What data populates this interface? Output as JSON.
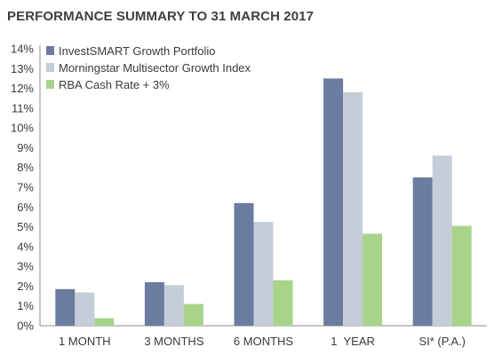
{
  "chart_data": {
    "type": "bar",
    "title": "PERFORMANCE SUMMARY TO 31 MARCH 2017",
    "categories": [
      "1 MONTH",
      "3 MONTHS",
      "6 MONTHS",
      "1  YEAR",
      "SI* (P.A.)"
    ],
    "series": [
      {
        "name": "InvestSMART Growth Portfolio",
        "color": "#6a7c9f",
        "values": [
          1.85,
          2.2,
          6.2,
          12.5,
          7.5
        ]
      },
      {
        "name": "Morningstar Multisector Growth Index",
        "color": "#c5cdd8",
        "values": [
          1.68,
          2.05,
          5.25,
          11.8,
          8.6
        ]
      },
      {
        "name": "RBA Cash Rate + 3%",
        "color": "#a8d48a",
        "values": [
          0.38,
          1.1,
          2.3,
          4.65,
          5.05
        ]
      }
    ],
    "y_ticks": [
      "0%",
      "1%",
      "2%",
      "3%",
      "4%",
      "5%",
      "6%",
      "7%",
      "8%",
      "9%",
      "10%",
      "11%",
      "12%",
      "13%",
      "14%"
    ],
    "ylim": [
      0,
      14
    ],
    "xlabel": "",
    "ylabel": "",
    "grid": false,
    "legend_position": "top-left"
  }
}
